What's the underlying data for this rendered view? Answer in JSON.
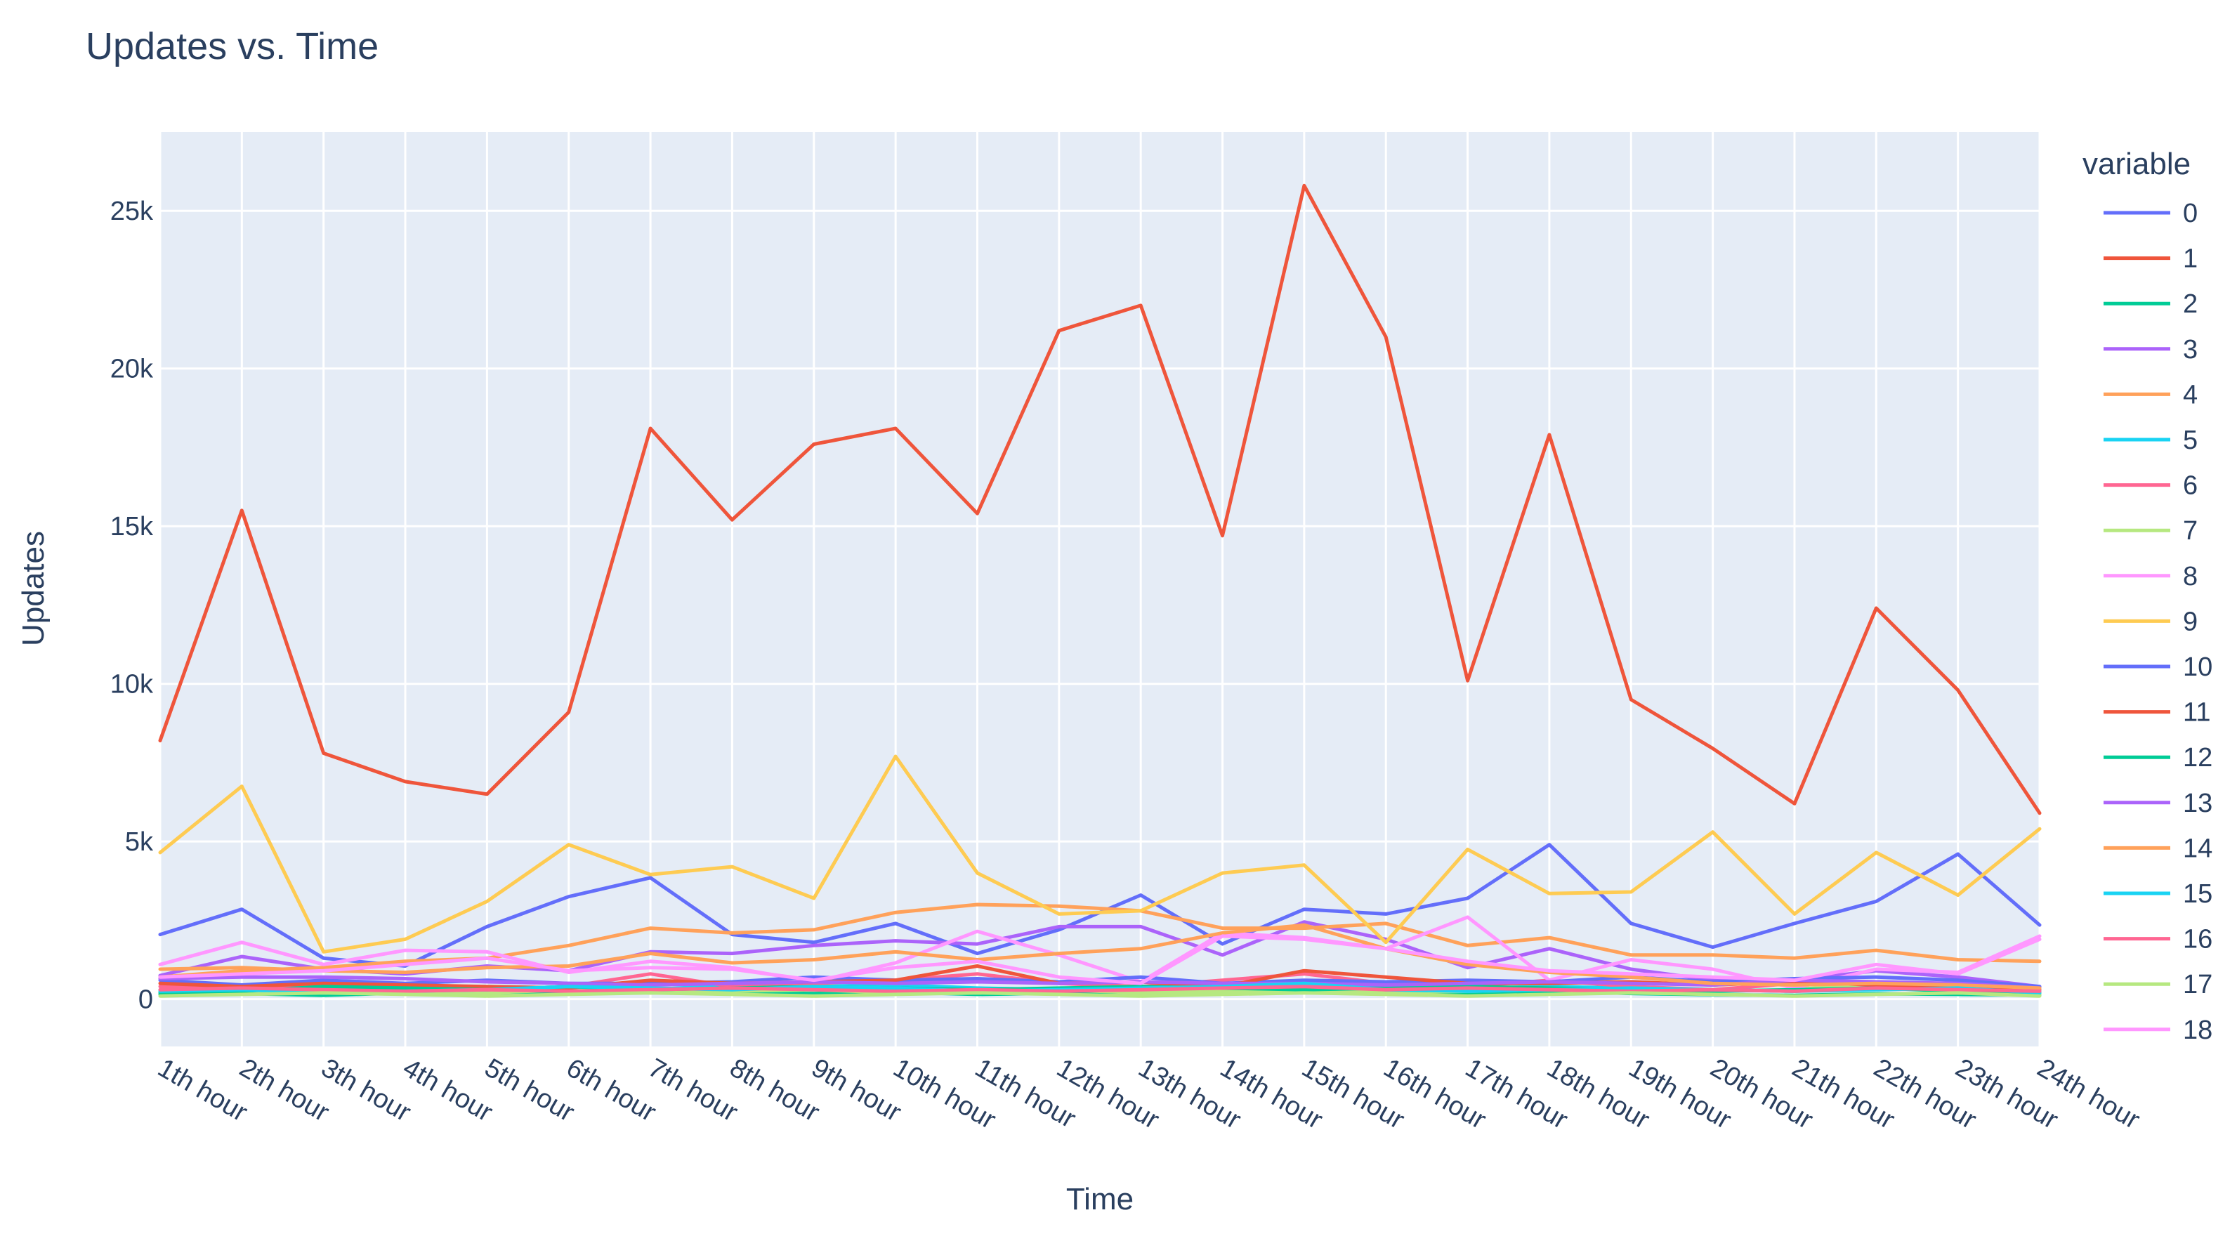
{
  "chart_data": {
    "type": "line",
    "title": "Updates vs. Time",
    "xlabel": "Time",
    "ylabel": "Updates",
    "ylim": [
      -1500,
      27500
    ],
    "yticks": [
      0,
      5000,
      10000,
      15000,
      20000,
      25000
    ],
    "ytick_labels": [
      "0",
      "5k",
      "10k",
      "15k",
      "20k",
      "25k"
    ],
    "grid": true,
    "legend_title": "variable",
    "legend_position": "right",
    "categories": [
      "1th hour",
      "2th hour",
      "3th hour",
      "4th hour",
      "5th hour",
      "6th hour",
      "7th hour",
      "8th hour",
      "9th hour",
      "10th hour",
      "11th hour",
      "12th hour",
      "13th hour",
      "14th hour",
      "15th hour",
      "16th hour",
      "17th hour",
      "18th hour",
      "19th hour",
      "20th hour",
      "21th hour",
      "22th hour",
      "23th hour",
      "24th hour"
    ],
    "series": [
      {
        "name": "0",
        "color": "#636efa",
        "values": [
          2050,
          2850,
          1300,
          1050,
          2300,
          3250,
          3850,
          2050,
          1800,
          2400,
          1450,
          2200,
          3300,
          1750,
          2850,
          2700,
          3200,
          4900,
          2400,
          1650,
          2400,
          3100,
          4600,
          2350
        ]
      },
      {
        "name": "1",
        "color": "#ef553b",
        "values": [
          8200,
          15500,
          7800,
          6900,
          6500,
          9100,
          18100,
          15200,
          17600,
          18100,
          15400,
          21200,
          22000,
          14700,
          25800,
          21000,
          10100,
          17900,
          9500,
          7950,
          6200,
          12400,
          9800,
          5900
        ]
      },
      {
        "name": "2",
        "color": "#00cc96",
        "values": [
          150,
          180,
          120,
          200,
          140,
          250,
          300,
          200,
          180,
          220,
          150,
          190,
          230,
          170,
          210,
          160,
          150,
          260,
          180,
          140,
          120,
          170,
          150,
          130
        ]
      },
      {
        "name": "3",
        "color": "#ab63fa",
        "values": [
          750,
          1350,
          950,
          800,
          1050,
          900,
          1500,
          1450,
          1700,
          1850,
          1750,
          2300,
          2300,
          1400,
          2450,
          1900,
          1000,
          1600,
          950,
          600,
          600,
          900,
          700,
          400
        ]
      },
      {
        "name": "4",
        "color": "#ffa15a",
        "values": [
          700,
          900,
          1000,
          1200,
          1300,
          1700,
          2250,
          2100,
          2200,
          2750,
          3000,
          2950,
          2800,
          2250,
          2250,
          2400,
          1700,
          1950,
          1400,
          1400,
          1300,
          1550,
          1250,
          1200
        ]
      },
      {
        "name": "5",
        "color": "#19d3f3",
        "values": [
          300,
          350,
          250,
          350,
          400,
          350,
          300,
          450,
          400,
          450,
          350,
          300,
          400,
          350,
          450,
          400,
          350,
          400,
          350,
          300,
          250,
          350,
          300,
          250
        ]
      },
      {
        "name": "6",
        "color": "#ff6692",
        "values": [
          400,
          300,
          500,
          350,
          300,
          400,
          800,
          400,
          500,
          600,
          800,
          500,
          400,
          600,
          800,
          500,
          400,
          600,
          400,
          300,
          500,
          400,
          300,
          200
        ]
      },
      {
        "name": "7",
        "color": "#b6e880",
        "values": [
          200,
          250,
          350,
          250,
          200,
          300,
          200,
          250,
          300,
          200,
          250,
          300,
          200,
          250,
          300,
          200,
          250,
          300,
          200,
          250,
          300,
          500,
          200,
          150
        ]
      },
      {
        "name": "8",
        "color": "#ff97ff",
        "values": [
          1100,
          1800,
          1100,
          1550,
          1500,
          850,
          1200,
          1000,
          550,
          1150,
          2150,
          1400,
          550,
          2100,
          1950,
          1600,
          2600,
          600,
          1250,
          950,
          350,
          950,
          850,
          2000
        ]
      },
      {
        "name": "9",
        "color": "#fecb52",
        "values": [
          4650,
          6750,
          1500,
          1900,
          3100,
          4900,
          3950,
          4200,
          3200,
          7700,
          4000,
          2700,
          2800,
          4000,
          4250,
          1800,
          4750,
          3350,
          3400,
          5300,
          2700,
          4650,
          3300,
          5400
        ]
      },
      {
        "name": "10",
        "color": "#636efa",
        "values": [
          600,
          450,
          600,
          500,
          600,
          500,
          500,
          550,
          700,
          600,
          650,
          550,
          700,
          500,
          600,
          550,
          600,
          550,
          700,
          550,
          650,
          700,
          600,
          400
        ]
      },
      {
        "name": "11",
        "color": "#ef553b",
        "values": [
          500,
          400,
          500,
          450,
          400,
          350,
          600,
          500,
          550,
          600,
          1050,
          500,
          550,
          400,
          900,
          700,
          500,
          500,
          550,
          450,
          550,
          450,
          400,
          300
        ]
      },
      {
        "name": "12",
        "color": "#00cc96",
        "values": [
          200,
          250,
          400,
          350,
          300,
          400,
          300,
          350,
          400,
          350,
          300,
          350,
          400,
          350,
          300,
          350,
          400,
          350,
          300,
          250,
          300,
          350,
          250,
          200
        ]
      },
      {
        "name": "13",
        "color": "#ab63fa",
        "values": [
          650,
          700,
          700,
          650,
          550,
          500,
          450,
          500,
          550,
          500,
          550,
          500,
          550,
          500,
          500,
          450,
          500,
          550,
          500,
          450,
          600,
          550,
          500,
          350
        ]
      },
      {
        "name": "14",
        "color": "#ffa15a",
        "values": [
          950,
          1000,
          900,
          850,
          1000,
          1050,
          1450,
          1150,
          1250,
          1500,
          1250,
          1450,
          1600,
          2100,
          2350,
          1600,
          1100,
          850,
          700,
          500,
          450,
          500,
          450,
          350
        ]
      },
      {
        "name": "15",
        "color": "#19d3f3",
        "values": [
          250,
          300,
          200,
          250,
          300,
          400,
          350,
          300,
          400,
          350,
          250,
          300,
          350,
          400,
          500,
          300,
          250,
          300,
          350,
          300,
          250,
          300,
          350,
          200
        ]
      },
      {
        "name": "16",
        "color": "#ff6692",
        "values": [
          300,
          350,
          300,
          250,
          300,
          250,
          300,
          350,
          300,
          250,
          300,
          250,
          300,
          350,
          400,
          300,
          350,
          300,
          250,
          300,
          250,
          350,
          300,
          250
        ]
      },
      {
        "name": "17",
        "color": "#b6e880",
        "values": [
          100,
          150,
          200,
          150,
          100,
          150,
          200,
          150,
          100,
          150,
          200,
          150,
          100,
          150,
          200,
          150,
          100,
          150,
          200,
          150,
          100,
          150,
          200,
          100
        ]
      },
      {
        "name": "18",
        "color": "#ff97ff",
        "values": [
          700,
          800,
          900,
          1100,
          1300,
          900,
          1000,
          950,
          600,
          1000,
          1200,
          700,
          500,
          2000,
          1900,
          1600,
          1200,
          900,
          800,
          700,
          600,
          1100,
          800,
          1900
        ]
      }
    ]
  }
}
